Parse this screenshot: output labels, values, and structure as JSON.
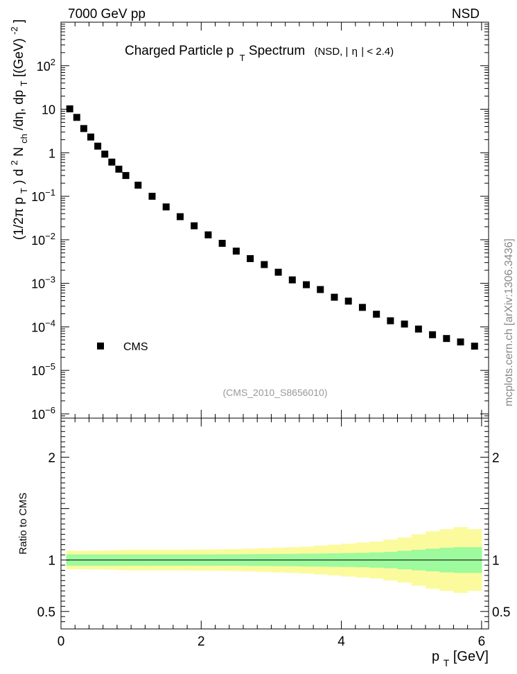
{
  "header": {
    "left": "7000 GeV pp",
    "right": "NSD"
  },
  "watermark": {
    "analysis_id": "(CMS_2010_S8656010)",
    "side_text": "mcplots.cern.ch [arXiv:1306.3436]"
  },
  "chart_data": [
    {
      "type": "scatter",
      "title": {
        "main_a": "Charged Particle p",
        "main_sub": "T",
        "main_b": " Spectrum",
        "qualifier_a": "(NSD, |",
        "qualifier_eta": "η",
        "qualifier_b": "| < 2.4)"
      },
      "ylabel": {
        "part1": "(1/2π p",
        "sub_T1": "T",
        "part2": ") d",
        "sup_2": "2",
        "part3": "N",
        "sub_ch": "ch",
        "part4": "/dη, dp",
        "sub_T2": "T",
        "part5": " [(GeV)",
        "sup_m2": "-2",
        "part6": "]"
      },
      "y_scale": "log",
      "xlim": [
        0,
        6.1
      ],
      "ylim": [
        8e-07,
        1000
      ],
      "y_ticks": [
        {
          "value": 100,
          "base": "10",
          "exp": "2"
        },
        {
          "value": 10,
          "base": "10",
          "exp": ""
        },
        {
          "value": 1,
          "base": "1",
          "exp": ""
        },
        {
          "value": 0.1,
          "base": "10",
          "exp": "−1"
        },
        {
          "value": 0.01,
          "base": "10",
          "exp": "−2"
        },
        {
          "value": 0.001,
          "base": "10",
          "exp": "−3"
        },
        {
          "value": 0.0001,
          "base": "10",
          "exp": "−4"
        },
        {
          "value": 1e-05,
          "base": "10",
          "exp": "−5"
        },
        {
          "value": 1e-06,
          "base": "10",
          "exp": "−6"
        }
      ],
      "legend": {
        "position": "bottom-left",
        "entries": [
          {
            "label": "CMS",
            "marker": "square",
            "color": "#000000"
          }
        ]
      },
      "series": [
        {
          "name": "CMS",
          "marker": "square",
          "color": "#000000",
          "x": [
            0.125,
            0.225,
            0.325,
            0.425,
            0.525,
            0.625,
            0.725,
            0.825,
            0.925,
            1.1,
            1.3,
            1.5,
            1.7,
            1.9,
            2.1,
            2.3,
            2.5,
            2.7,
            2.9,
            3.1,
            3.3,
            3.5,
            3.7,
            3.9,
            4.1,
            4.3,
            4.5,
            4.7,
            4.9,
            5.1,
            5.3,
            5.5,
            5.7,
            5.9
          ],
          "y": [
            10.2,
            6.5,
            3.6,
            2.3,
            1.42,
            0.93,
            0.61,
            0.42,
            0.3,
            0.18,
            0.1,
            0.057,
            0.034,
            0.021,
            0.013,
            0.0083,
            0.0055,
            0.0037,
            0.0027,
            0.0018,
            0.0012,
            0.00093,
            0.00072,
            0.00048,
            0.00039,
            0.00028,
            0.000195,
            0.000138,
            0.000116,
            8.9e-05,
            6.6e-05,
            5.4e-05,
            4.5e-05,
            3.6e-05
          ]
        }
      ]
    },
    {
      "type": "area",
      "ylabel": "Ratio to CMS",
      "xlabel": {
        "main": "p",
        "sub": "T",
        "unit": " [GeV]"
      },
      "xlim": [
        0,
        6.1
      ],
      "ylim": [
        0.33,
        2.38
      ],
      "x_ticks": [
        0,
        2,
        4,
        6
      ],
      "y_ticks": [
        {
          "value": 2,
          "label": "2"
        },
        {
          "value": 1,
          "label": "1"
        },
        {
          "value": 0.5,
          "label": "0.5"
        }
      ],
      "reference_line": 1,
      "bands": {
        "edges": [
          0.075,
          0.175,
          0.275,
          0.375,
          0.475,
          0.575,
          0.675,
          0.775,
          0.875,
          0.975,
          1.2,
          1.4,
          1.6,
          1.8,
          2.0,
          2.2,
          2.4,
          2.6,
          2.8,
          3.0,
          3.2,
          3.4,
          3.6,
          3.8,
          4.0,
          4.2,
          4.4,
          4.6,
          4.8,
          5.0,
          5.2,
          5.4,
          5.6,
          5.8,
          6.0
        ],
        "inner": {
          "color": "#9dfa9d",
          "half_width": [
            0.055,
            0.055,
            0.055,
            0.055,
            0.055,
            0.055,
            0.055,
            0.055,
            0.055,
            0.055,
            0.055,
            0.055,
            0.055,
            0.055,
            0.055,
            0.056,
            0.056,
            0.057,
            0.058,
            0.059,
            0.06,
            0.062,
            0.063,
            0.065,
            0.067,
            0.07,
            0.074,
            0.08,
            0.09,
            0.1,
            0.11,
            0.12,
            0.125,
            0.125
          ]
        },
        "outer": {
          "color": "#fbfb9e",
          "half_width": [
            0.09,
            0.09,
            0.09,
            0.092,
            0.092,
            0.095,
            0.095,
            0.098,
            0.1,
            0.1,
            0.1,
            0.1,
            0.1,
            0.102,
            0.103,
            0.105,
            0.107,
            0.11,
            0.115,
            0.12,
            0.125,
            0.13,
            0.14,
            0.15,
            0.16,
            0.17,
            0.18,
            0.2,
            0.22,
            0.25,
            0.28,
            0.3,
            0.32,
            0.3
          ]
        }
      }
    }
  ]
}
